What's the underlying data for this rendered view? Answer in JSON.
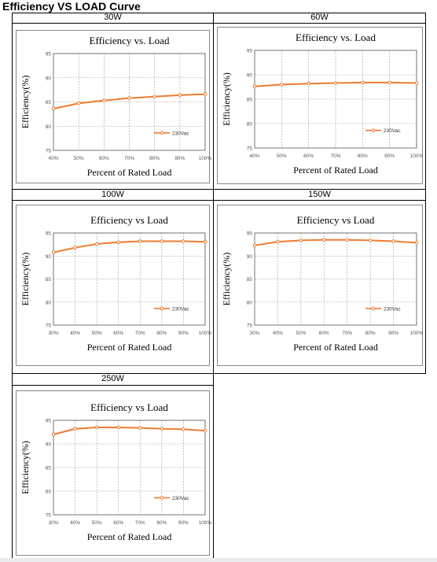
{
  "document_title": "Efficiency VS LOAD Curve",
  "colors": {
    "line": "#ed7d31",
    "grid": "#9a9a9a",
    "plot_border": "#555555",
    "frame_border": "#888888"
  },
  "cells": [
    {
      "header": "30W"
    },
    {
      "header": "60W"
    },
    {
      "header": "100W"
    },
    {
      "header": "150W"
    },
    {
      "header": "250W"
    }
  ],
  "chart_data": [
    {
      "type": "line",
      "title": "Efficiency vs. Load",
      "xlabel": "Percent of Rated Load",
      "ylabel": "Efficiency(%)",
      "categories": [
        "40%",
        "50%",
        "60%",
        "70%",
        "80%",
        "90%",
        "100%"
      ],
      "yticks": [
        "75",
        "80",
        "85",
        "90",
        "95"
      ],
      "ylim": [
        75,
        95
      ],
      "grid": true,
      "legend_position": "bottom-right",
      "series": [
        {
          "name": "230Vac",
          "values": [
            83.6,
            84.7,
            85.3,
            85.8,
            86.1,
            86.4,
            86.6
          ]
        }
      ]
    },
    {
      "type": "line",
      "title": "Efficiency vs. Load",
      "xlabel": "Percent of Rated Load",
      "ylabel": "Efficiency(%)",
      "categories": [
        "40%",
        "50%",
        "60%",
        "70%",
        "80%",
        "90%",
        "100%"
      ],
      "yticks": [
        "75",
        "80",
        "85",
        "90",
        "95"
      ],
      "ylim": [
        75,
        95
      ],
      "grid": true,
      "legend_position": "bottom-right",
      "series": [
        {
          "name": "230Vac",
          "values": [
            87.6,
            88.0,
            88.2,
            88.3,
            88.4,
            88.4,
            88.3
          ]
        }
      ]
    },
    {
      "type": "line",
      "title": "Efficiency vs Load",
      "xlabel": "Percent of Rated Load",
      "ylabel": "Efficiency(%)",
      "categories": [
        "30%",
        "40%",
        "50%",
        "60%",
        "70%",
        "80%",
        "90%",
        "100%"
      ],
      "yticks": [
        "75",
        "80",
        "85",
        "90",
        "95"
      ],
      "ylim": [
        75,
        95
      ],
      "grid": true,
      "legend_position": "bottom-right",
      "series": [
        {
          "name": "230Vac",
          "values": [
            90.8,
            91.8,
            92.6,
            93.0,
            93.2,
            93.2,
            93.2,
            93.1
          ]
        }
      ]
    },
    {
      "type": "line",
      "title": "Efficiency vs Load",
      "xlabel": "Percent of Rated Load",
      "ylabel": "Efficiency(%)",
      "categories": [
        "30%",
        "40%",
        "50%",
        "60%",
        "70%",
        "80%",
        "90%",
        "100%"
      ],
      "yticks": [
        "75",
        "80",
        "85",
        "90",
        "95"
      ],
      "ylim": [
        75,
        95
      ],
      "grid": true,
      "legend_position": "bottom-right",
      "series": [
        {
          "name": "230Vac",
          "values": [
            92.3,
            93.1,
            93.4,
            93.5,
            93.5,
            93.4,
            93.2,
            92.9
          ]
        }
      ]
    },
    {
      "type": "line",
      "title": "Efficiency vs Load",
      "xlabel": "Percent of Rated Load",
      "ylabel": "Efficiency(%)",
      "categories": [
        "30%",
        "40%",
        "50%",
        "60%",
        "70%",
        "80%",
        "90%",
        "100%"
      ],
      "yticks": [
        "75",
        "80",
        "85",
        "90",
        "95"
      ],
      "ylim": [
        75,
        95
      ],
      "grid": true,
      "legend_position": "bottom-right",
      "series": [
        {
          "name": "230Vac",
          "values": [
            92.0,
            93.2,
            93.5,
            93.5,
            93.4,
            93.2,
            93.1,
            92.8
          ]
        }
      ]
    }
  ]
}
